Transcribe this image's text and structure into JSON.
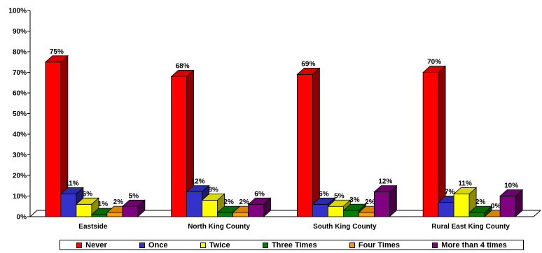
{
  "chart_data": {
    "type": "bar",
    "style": "3d-clustered",
    "categories": [
      "Eastside",
      "North King County",
      "South King County",
      "Rural East King County"
    ],
    "series": [
      {
        "name": "Never",
        "color": "#ff0000",
        "values": [
          75,
          68,
          69,
          70
        ],
        "labels": [
          "75%",
          "68%",
          "69%",
          "70%"
        ]
      },
      {
        "name": "Once",
        "color": "#3333cc",
        "values": [
          11,
          12,
          6,
          7
        ],
        "labels": [
          "11%",
          "12%",
          "6%",
          "7%"
        ]
      },
      {
        "name": "Twice",
        "color": "#ffff00",
        "values": [
          6,
          8,
          5,
          11
        ],
        "labels": [
          "6%",
          "8%",
          "5%",
          "11%"
        ]
      },
      {
        "name": "Three Times",
        "color": "#008000",
        "values": [
          1,
          2,
          3,
          2
        ],
        "labels": [
          "1%",
          "2%",
          "3%",
          "2%"
        ]
      },
      {
        "name": "Four Times",
        "color": "#ff9900",
        "values": [
          2,
          2,
          2,
          0
        ],
        "labels": [
          "2%",
          "2%",
          "2%",
          "0%"
        ]
      },
      {
        "name": "More than 4 times",
        "color": "#800080",
        "values": [
          5,
          6,
          12,
          10
        ],
        "labels": [
          "5%",
          "6%",
          "12%",
          "10%"
        ]
      }
    ],
    "ylim": [
      0,
      100
    ],
    "yticks": [
      "0%",
      "10%",
      "20%",
      "30%",
      "40%",
      "50%",
      "60%",
      "70%",
      "80%",
      "90%",
      "100%"
    ],
    "xlabel": "",
    "ylabel": "",
    "grid": false,
    "legend_position": "bottom"
  }
}
